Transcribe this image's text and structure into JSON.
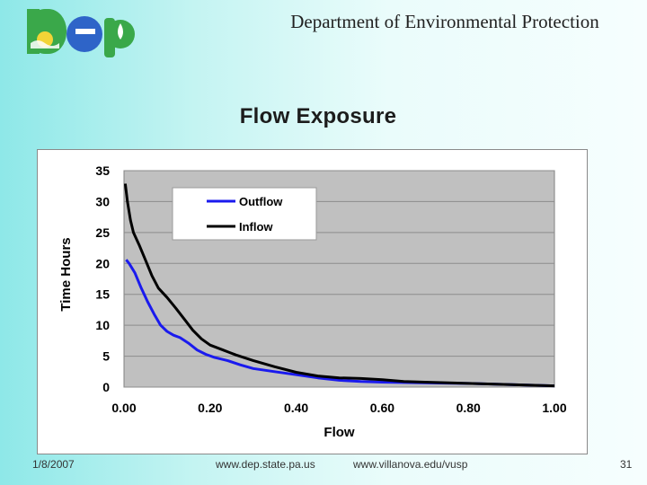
{
  "header": {
    "logo_text": "Dep",
    "org_title": "Department of Environmental Protection"
  },
  "slide": {
    "title": "Flow Exposure"
  },
  "footer": {
    "date": "1/8/2007",
    "url_1": "www.dep.state.pa.us",
    "url_2": "www.villanova.edu/vusp",
    "page_number": "31"
  },
  "colors": {
    "plot_background": "#c0c0c0",
    "outflow": "#1a1aee",
    "inflow": "#000000",
    "logo_green": "#3aa84a",
    "logo_blue": "#2e64c8"
  },
  "chart_data": {
    "type": "line",
    "title": "",
    "xlabel": "Flow",
    "ylabel": "Time Hours",
    "xlim": [
      0,
      1
    ],
    "ylim": [
      0,
      35
    ],
    "x_ticks": [
      "0.00",
      "0.20",
      "0.40",
      "0.60",
      "0.80",
      "1.00"
    ],
    "y_ticks": [
      "0",
      "5",
      "10",
      "15",
      "20",
      "25",
      "30",
      "35"
    ],
    "grid": true,
    "legend_position": "top-left",
    "series": [
      {
        "name": "Outflow",
        "color": "#1a1aee",
        "points": [
          [
            0.005,
            20.6
          ],
          [
            0.012,
            20.0
          ],
          [
            0.025,
            18.5
          ],
          [
            0.04,
            16.0
          ],
          [
            0.055,
            13.8
          ],
          [
            0.07,
            11.8
          ],
          [
            0.085,
            10.0
          ],
          [
            0.1,
            9.0
          ],
          [
            0.115,
            8.4
          ],
          [
            0.13,
            8.0
          ],
          [
            0.15,
            7.1
          ],
          [
            0.17,
            6.0
          ],
          [
            0.19,
            5.3
          ],
          [
            0.21,
            4.8
          ],
          [
            0.24,
            4.3
          ],
          [
            0.27,
            3.6
          ],
          [
            0.3,
            3.0
          ],
          [
            0.35,
            2.5
          ],
          [
            0.4,
            2.0
          ],
          [
            0.45,
            1.5
          ],
          [
            0.5,
            1.1
          ],
          [
            0.55,
            0.9
          ],
          [
            0.6,
            0.8
          ],
          [
            0.7,
            0.7
          ],
          [
            0.8,
            0.6
          ],
          [
            0.9,
            0.4
          ],
          [
            1.0,
            0.2
          ]
        ]
      },
      {
        "name": "Inflow",
        "color": "#000000",
        "points": [
          [
            0.003,
            32.9
          ],
          [
            0.008,
            30.0
          ],
          [
            0.015,
            27.0
          ],
          [
            0.022,
            25.0
          ],
          [
            0.035,
            23.0
          ],
          [
            0.05,
            20.5
          ],
          [
            0.065,
            18.0
          ],
          [
            0.08,
            16.0
          ],
          [
            0.1,
            14.5
          ],
          [
            0.12,
            12.8
          ],
          [
            0.14,
            11.0
          ],
          [
            0.16,
            9.2
          ],
          [
            0.18,
            7.8
          ],
          [
            0.2,
            6.8
          ],
          [
            0.23,
            6.0
          ],
          [
            0.26,
            5.2
          ],
          [
            0.3,
            4.3
          ],
          [
            0.35,
            3.3
          ],
          [
            0.4,
            2.4
          ],
          [
            0.45,
            1.8
          ],
          [
            0.5,
            1.5
          ],
          [
            0.55,
            1.4
          ],
          [
            0.6,
            1.2
          ],
          [
            0.65,
            0.9
          ],
          [
            0.7,
            0.8
          ],
          [
            0.8,
            0.6
          ],
          [
            0.9,
            0.4
          ],
          [
            1.0,
            0.2
          ]
        ]
      }
    ]
  }
}
